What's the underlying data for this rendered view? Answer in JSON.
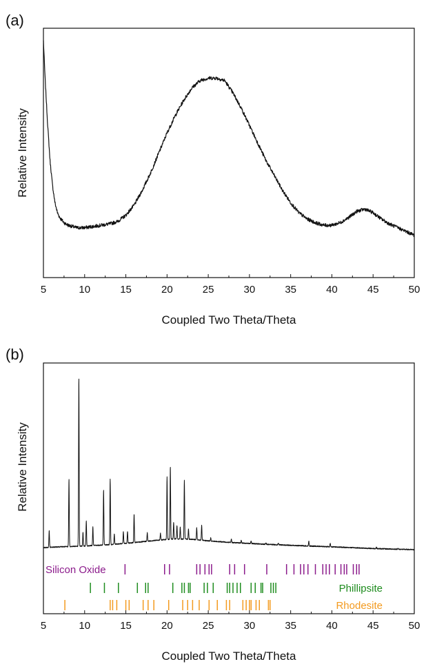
{
  "chart_data": [
    {
      "type": "line",
      "panel_label": "(a)",
      "xlabel": "Coupled Two Theta/Theta",
      "ylabel": "Relative Intensity",
      "xlim": [
        5,
        50
      ],
      "xticks": [
        5,
        10,
        15,
        20,
        25,
        30,
        35,
        40,
        45,
        50
      ],
      "y_tick_labels": false,
      "grid": false,
      "series": [
        {
          "x": [
            5,
            5.2,
            5.5,
            5.8,
            6.1,
            6.4,
            6.7,
            7,
            7.5,
            8,
            9,
            10,
            11,
            12,
            13,
            14,
            15,
            16,
            17,
            18,
            19,
            20,
            21,
            22,
            23,
            24,
            25,
            26,
            27,
            28,
            29,
            30,
            31,
            32,
            33,
            34,
            35,
            36,
            37,
            38,
            39,
            40,
            41,
            42,
            43,
            44,
            45,
            46,
            47,
            48,
            49,
            50
          ],
          "y": [
            0.95,
            0.8,
            0.62,
            0.47,
            0.37,
            0.3,
            0.26,
            0.24,
            0.22,
            0.21,
            0.2,
            0.2,
            0.205,
            0.21,
            0.215,
            0.225,
            0.25,
            0.29,
            0.35,
            0.42,
            0.5,
            0.58,
            0.65,
            0.71,
            0.76,
            0.79,
            0.8,
            0.8,
            0.79,
            0.74,
            0.68,
            0.61,
            0.54,
            0.47,
            0.41,
            0.35,
            0.3,
            0.26,
            0.235,
            0.22,
            0.21,
            0.21,
            0.22,
            0.24,
            0.265,
            0.275,
            0.26,
            0.235,
            0.215,
            0.2,
            0.185,
            0.17
          ]
        }
      ]
    },
    {
      "type": "line",
      "panel_label": "(b)",
      "xlabel": "Coupled Two Theta/Theta",
      "ylabel": "Relative Intensity",
      "xlim": [
        5,
        50
      ],
      "xticks": [
        5,
        10,
        15,
        20,
        25,
        30,
        35,
        40,
        45,
        50
      ],
      "y_tick_labels": false,
      "grid": false,
      "baseline": [
        [
          5,
          0.02
        ],
        [
          7,
          0.025
        ],
        [
          10,
          0.03
        ],
        [
          13,
          0.038
        ],
        [
          16,
          0.05
        ],
        [
          19,
          0.065
        ],
        [
          21,
          0.072
        ],
        [
          23,
          0.07
        ],
        [
          25,
          0.06
        ],
        [
          28,
          0.05
        ],
        [
          32,
          0.04
        ],
        [
          36,
          0.032
        ],
        [
          40,
          0.025
        ],
        [
          45,
          0.015
        ],
        [
          50,
          0.008
        ]
      ],
      "peaks": [
        {
          "x": 5.7,
          "h": 0.1
        },
        {
          "x": 8.1,
          "h": 0.4
        },
        {
          "x": 9.3,
          "h": 1.0
        },
        {
          "x": 9.8,
          "h": 0.08
        },
        {
          "x": 10.2,
          "h": 0.15
        },
        {
          "x": 11.0,
          "h": 0.11
        },
        {
          "x": 12.3,
          "h": 0.33
        },
        {
          "x": 13.1,
          "h": 0.39
        },
        {
          "x": 13.6,
          "h": 0.06
        },
        {
          "x": 14.7,
          "h": 0.07
        },
        {
          "x": 15.2,
          "h": 0.07
        },
        {
          "x": 16.0,
          "h": 0.17
        },
        {
          "x": 17.6,
          "h": 0.05
        },
        {
          "x": 19.2,
          "h": 0.04
        },
        {
          "x": 20.0,
          "h": 0.37
        },
        {
          "x": 20.4,
          "h": 0.43
        },
        {
          "x": 20.8,
          "h": 0.1
        },
        {
          "x": 21.2,
          "h": 0.08
        },
        {
          "x": 21.6,
          "h": 0.07
        },
        {
          "x": 22.1,
          "h": 0.35
        },
        {
          "x": 22.6,
          "h": 0.06
        },
        {
          "x": 23.6,
          "h": 0.07
        },
        {
          "x": 24.2,
          "h": 0.09
        },
        {
          "x": 25.3,
          "h": 0.02
        },
        {
          "x": 27.8,
          "h": 0.02
        },
        {
          "x": 29.0,
          "h": 0.015
        },
        {
          "x": 30.2,
          "h": 0.015
        },
        {
          "x": 32.0,
          "h": 0.01
        },
        {
          "x": 33.5,
          "h": 0.01
        },
        {
          "x": 37.2,
          "h": 0.03
        },
        {
          "x": 39.8,
          "h": 0.02
        },
        {
          "x": 45.4,
          "h": 0.008
        },
        {
          "x": 48.0,
          "h": 0.005
        }
      ],
      "phases": [
        {
          "name": "Silicon Oxide",
          "color": "#8b1a8b",
          "label_side": "left",
          "positions": [
            14.9,
            19.7,
            20.3,
            23.6,
            24.0,
            24.6,
            25.1,
            25.4,
            27.6,
            28.2,
            29.4,
            32.1,
            34.5,
            35.4,
            36.2,
            36.6,
            37.1,
            38.0,
            38.9,
            39.3,
            39.7,
            40.4,
            41.1,
            41.5,
            41.8,
            42.6,
            43.0,
            43.3
          ]
        },
        {
          "name": "Phillipsite",
          "color": "#1e8c1e",
          "label_side": "right",
          "positions": [
            10.7,
            12.4,
            14.1,
            16.4,
            17.4,
            17.7,
            20.7,
            21.8,
            22.1,
            22.6,
            22.8,
            24.5,
            24.9,
            25.6,
            27.3,
            27.6,
            28.0,
            28.5,
            28.9,
            30.2,
            30.7,
            31.4,
            31.6,
            32.6,
            32.9,
            33.2
          ]
        },
        {
          "name": "Rhodesite",
          "color": "#f39a1e",
          "label_side": "right",
          "positions": [
            7.6,
            13.1,
            13.4,
            13.9,
            15.0,
            15.4,
            17.1,
            17.7,
            18.4,
            20.2,
            21.9,
            22.5,
            23.1,
            23.9,
            25.1,
            26.1,
            27.2,
            27.6,
            29.2,
            29.6,
            30.0,
            30.2,
            30.8,
            31.2,
            32.3,
            32.5
          ]
        }
      ]
    }
  ]
}
